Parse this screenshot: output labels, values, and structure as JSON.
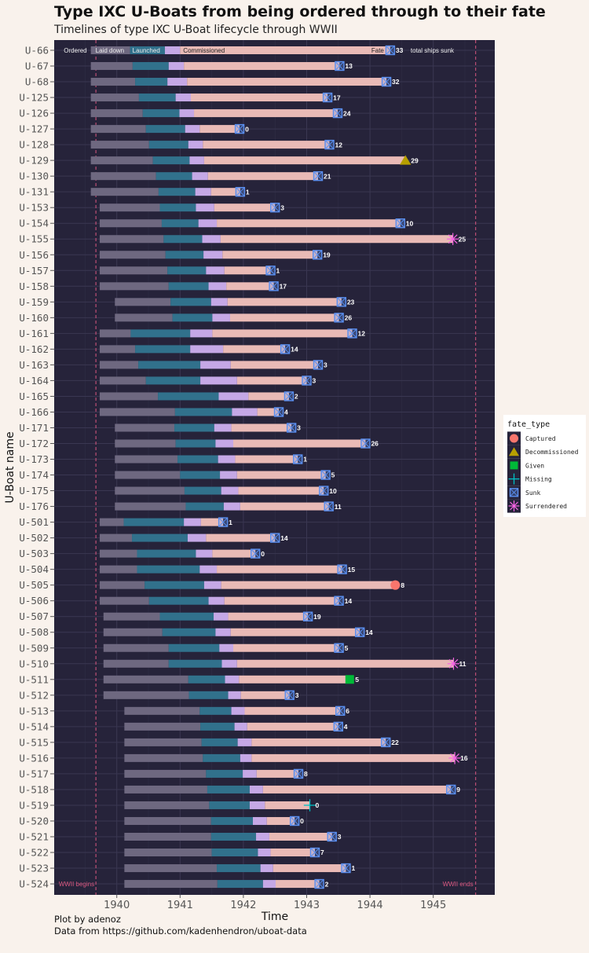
{
  "chart_data": {
    "type": "timeline",
    "title": "Type IXC U-Boats from being ordered through to their fate",
    "subtitle": "Timelines of type IXC U-Boat lifecycle through WWII",
    "xlabel": "Time",
    "ylabel": "U-Boat name",
    "xlim": [
      1939.35,
      1945.95
    ],
    "xticks": [
      1940,
      1941,
      1942,
      1943,
      1944,
      1945
    ],
    "grid": true,
    "caption": [
      "Plot by adenoz",
      "Data from https://github.com/kadenhendron/uboat-data"
    ],
    "stage_labels": {
      "ordered": "Ordered",
      "laid_down": "Laid down",
      "launched": "Launched",
      "commissioned": "Commissioned",
      "fate": "Fate",
      "sunk_suffix": "total ships sunk"
    },
    "stage_colors": {
      "ordered": "#6e6880",
      "laid_down": "#31718c",
      "launched": "#c5a8e6",
      "commissioned": "#e9bab6"
    },
    "reference_lines": [
      {
        "x": 1939.67,
        "label": "WWII begins"
      },
      {
        "x": 1945.67,
        "label": "WWII ends"
      }
    ],
    "legend": {
      "title": "fate_type",
      "position": "right",
      "entries": [
        {
          "name": "Captured",
          "color": "#f8766d",
          "shape": "circle"
        },
        {
          "name": "Decommissioned",
          "color": "#b79f00",
          "shape": "triangle"
        },
        {
          "name": "Given",
          "color": "#00ba38",
          "shape": "square"
        },
        {
          "name": "Missing",
          "color": "#00bfc4",
          "shape": "plus"
        },
        {
          "name": "Sunk",
          "color": "#619cff",
          "shape": "square-cross"
        },
        {
          "name": "Surrendered",
          "color": "#f564e3",
          "shape": "asterisk"
        }
      ]
    },
    "columns": [
      "name",
      "ordered",
      "laid_down",
      "launched",
      "commissioned",
      "fate",
      "fate_type",
      "ships_sunk"
    ],
    "boats": [
      [
        "U-66",
        1939.59,
        1940.21,
        1940.76,
        1941.0,
        1944.32,
        "Sunk",
        33
      ],
      [
        "U-67",
        1939.59,
        1940.25,
        1940.82,
        1941.06,
        1943.52,
        "Sunk",
        13
      ],
      [
        "U-68",
        1939.59,
        1940.29,
        1940.8,
        1941.11,
        1944.26,
        "Sunk",
        32
      ],
      [
        "U-125",
        1939.59,
        1940.35,
        1940.93,
        1941.17,
        1943.33,
        "Sunk",
        17
      ],
      [
        "U-126",
        1939.59,
        1940.41,
        1940.99,
        1941.22,
        1943.49,
        "Sunk",
        24
      ],
      [
        "U-127",
        1939.59,
        1940.46,
        1941.08,
        1941.31,
        1941.94,
        "Sunk",
        0
      ],
      [
        "U-128",
        1939.59,
        1940.51,
        1941.13,
        1941.36,
        1943.36,
        "Sunk",
        12
      ],
      [
        "U-129",
        1939.59,
        1940.57,
        1941.15,
        1941.38,
        1944.56,
        "Decommissioned",
        29
      ],
      [
        "U-130",
        1939.59,
        1940.62,
        1941.19,
        1941.44,
        1943.18,
        "Sunk",
        21
      ],
      [
        "U-131",
        1939.59,
        1940.66,
        1941.24,
        1941.49,
        1941.95,
        "Sunk",
        1
      ],
      [
        "U-153",
        1939.73,
        1940.68,
        1941.25,
        1941.54,
        1942.5,
        "Sunk",
        3
      ],
      [
        "U-154",
        1939.73,
        1940.71,
        1941.29,
        1941.58,
        1944.48,
        "Sunk",
        10
      ],
      [
        "U-155",
        1939.73,
        1940.74,
        1941.35,
        1941.64,
        1945.31,
        "Surrendered",
        25
      ],
      [
        "U-156",
        1939.73,
        1940.77,
        1941.37,
        1941.67,
        1943.17,
        "Sunk",
        19
      ],
      [
        "U-157",
        1939.73,
        1940.8,
        1941.41,
        1941.7,
        1942.43,
        "Sunk",
        1
      ],
      [
        "U-158",
        1939.73,
        1940.82,
        1941.45,
        1941.73,
        1942.48,
        "Sunk",
        17
      ],
      [
        "U-159",
        1939.97,
        1940.85,
        1941.49,
        1941.75,
        1943.55,
        "Sunk",
        23
      ],
      [
        "U-160",
        1939.97,
        1940.88,
        1941.51,
        1941.79,
        1943.51,
        "Sunk",
        26
      ],
      [
        "U-161",
        1939.73,
        1940.22,
        1941.16,
        1941.51,
        1943.72,
        "Sunk",
        12
      ],
      [
        "U-162",
        1939.73,
        1940.29,
        1941.16,
        1941.68,
        1942.66,
        "Sunk",
        14
      ],
      [
        "U-163",
        1939.73,
        1940.34,
        1941.32,
        1941.8,
        1943.18,
        "Sunk",
        3
      ],
      [
        "U-164",
        1939.73,
        1940.46,
        1941.32,
        1941.9,
        1943.0,
        "Sunk",
        3
      ],
      [
        "U-165",
        1939.73,
        1940.65,
        1941.61,
        1942.08,
        1942.72,
        "Sunk",
        2
      ],
      [
        "U-166",
        1939.73,
        1940.92,
        1941.82,
        1942.22,
        1942.56,
        "Sunk",
        4
      ],
      [
        "U-171",
        1939.97,
        1940.91,
        1941.54,
        1941.81,
        1942.76,
        "Sunk",
        3
      ],
      [
        "U-172",
        1939.97,
        1940.93,
        1941.56,
        1941.84,
        1943.93,
        "Sunk",
        26
      ],
      [
        "U-173",
        1939.97,
        1940.96,
        1941.6,
        1941.87,
        1942.86,
        "Sunk",
        1
      ],
      [
        "U-174",
        1939.97,
        1941.0,
        1941.63,
        1941.9,
        1943.3,
        "Sunk",
        5
      ],
      [
        "U-175",
        1939.97,
        1941.07,
        1941.65,
        1941.92,
        1943.27,
        "Sunk",
        10
      ],
      [
        "U-176",
        1939.97,
        1941.09,
        1941.69,
        1941.95,
        1943.35,
        "Sunk",
        11
      ],
      [
        "U-501",
        1939.73,
        1940.11,
        1941.06,
        1941.33,
        1941.68,
        "Sunk",
        1
      ],
      [
        "U-502",
        1939.73,
        1940.24,
        1941.12,
        1941.41,
        1942.5,
        "Sunk",
        14
      ],
      [
        "U-503",
        1939.73,
        1940.32,
        1941.25,
        1941.51,
        1942.19,
        "Sunk",
        0
      ],
      [
        "U-504",
        1939.73,
        1940.32,
        1941.31,
        1941.58,
        1943.56,
        "Sunk",
        15
      ],
      [
        "U-505",
        1939.73,
        1940.44,
        1941.38,
        1941.65,
        1944.4,
        "Captured",
        8
      ],
      [
        "U-506",
        1939.73,
        1940.51,
        1941.45,
        1941.7,
        1943.51,
        "Sunk",
        14
      ],
      [
        "U-507",
        1939.79,
        1940.68,
        1941.53,
        1941.76,
        1943.02,
        "Sunk",
        19
      ],
      [
        "U-508",
        1939.79,
        1940.72,
        1941.56,
        1941.8,
        1943.84,
        "Sunk",
        14
      ],
      [
        "U-509",
        1939.79,
        1940.82,
        1941.62,
        1941.84,
        1943.51,
        "Sunk",
        5
      ],
      [
        "U-510",
        1939.79,
        1940.82,
        1941.66,
        1941.9,
        1945.32,
        "Surrendered",
        11
      ],
      [
        "U-511",
        1939.79,
        1941.13,
        1941.71,
        1941.93,
        1943.68,
        "Given",
        5
      ],
      [
        "U-512",
        1939.79,
        1941.14,
        1941.76,
        1941.96,
        1942.73,
        "Sunk",
        3
      ],
      [
        "U-513",
        1940.12,
        1941.31,
        1941.81,
        1942.02,
        1943.53,
        "Sunk",
        6
      ],
      [
        "U-514",
        1940.12,
        1941.32,
        1941.86,
        1942.06,
        1943.5,
        "Sunk",
        4
      ],
      [
        "U-515",
        1940.12,
        1941.34,
        1941.91,
        1942.13,
        1944.25,
        "Sunk",
        22
      ],
      [
        "U-516",
        1940.12,
        1941.36,
        1941.95,
        1942.13,
        1945.34,
        "Surrendered",
        16
      ],
      [
        "U-517",
        1940.12,
        1941.41,
        1941.99,
        1942.21,
        1942.87,
        "Sunk",
        8
      ],
      [
        "U-518",
        1940.12,
        1941.43,
        1942.1,
        1942.31,
        1945.28,
        "Sunk",
        9
      ],
      [
        "U-519",
        1940.12,
        1941.46,
        1942.1,
        1942.34,
        1943.05,
        "Missing",
        0
      ],
      [
        "U-520",
        1940.12,
        1941.49,
        1942.15,
        1942.37,
        1942.81,
        "Sunk",
        0
      ],
      [
        "U-521",
        1940.12,
        1941.49,
        1942.2,
        1942.41,
        1943.4,
        "Sunk",
        3
      ],
      [
        "U-522",
        1940.12,
        1941.5,
        1942.23,
        1942.43,
        1943.13,
        "Sunk",
        7
      ],
      [
        "U-523",
        1940.12,
        1941.58,
        1942.27,
        1942.47,
        1943.62,
        "Sunk",
        1
      ],
      [
        "U-524",
        1940.12,
        1941.59,
        1942.31,
        1942.51,
        1943.2,
        "Sunk",
        2
      ]
    ]
  }
}
